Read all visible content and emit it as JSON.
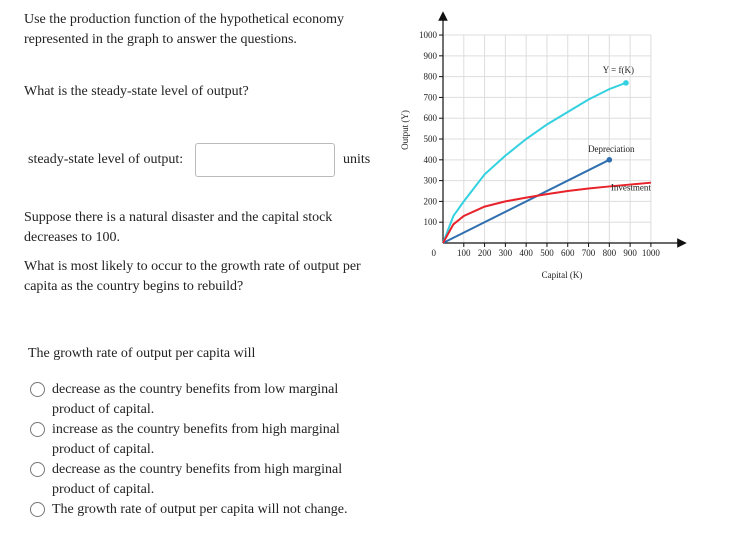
{
  "question": {
    "intro": "Use the production function of the hypothetical economy represented in the graph to answer the questions.",
    "prompt": "What is the steady-state level of output?",
    "input_label": "steady-state level of output:",
    "input_unit": "units",
    "scenario": "Suppose there is a natural disaster and the capital stock decreases to 100.",
    "followup": "What is most likely to occur to the growth rate of output per capita as the country begins to rebuild?",
    "stem": "The growth rate of output per capita will",
    "options": [
      "decrease as the country benefits from low marginal product of capital.",
      "increase as the country benefits from high marginal product of capital.",
      "decrease as the country benefits from high marginal product of capital.",
      "The growth rate of output per capita will not change."
    ]
  },
  "chart_data": {
    "type": "line",
    "x_label": "Capital (K)",
    "y_label": "Output (Y)",
    "origin_label": "0",
    "xlim": [
      0,
      1140
    ],
    "ylim": [
      0,
      1080
    ],
    "xticks": [
      100,
      200,
      300,
      400,
      500,
      600,
      700,
      800,
      900,
      1000
    ],
    "yticks": [
      100,
      200,
      300,
      400,
      500,
      600,
      700,
      800,
      900,
      1000
    ],
    "grid": true,
    "series": [
      {
        "name": "Y = f(K)",
        "color": "#33d1e0",
        "end_marker": true,
        "x": [
          0,
          50,
          100,
          200,
          300,
          400,
          500,
          600,
          700,
          800,
          880
        ],
        "values": [
          0,
          130,
          200,
          330,
          420,
          500,
          570,
          630,
          690,
          740,
          770
        ]
      },
      {
        "name": "Depreciation",
        "color": "#2f6fb0",
        "end_marker": true,
        "x": [
          0,
          800
        ],
        "values": [
          0,
          400
        ]
      },
      {
        "name": "Investment",
        "color": "#e8222a",
        "end_marker": false,
        "x": [
          0,
          50,
          100,
          200,
          300,
          400,
          500,
          600,
          700,
          800,
          900,
          1000
        ],
        "values": [
          0,
          90,
          130,
          175,
          200,
          218,
          235,
          250,
          262,
          272,
          281,
          290
        ]
      }
    ]
  }
}
